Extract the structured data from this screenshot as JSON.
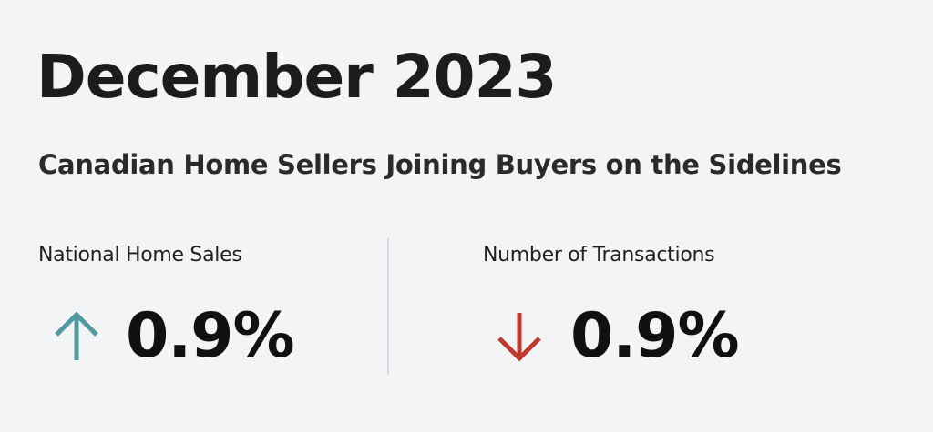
{
  "header": {
    "title": "December 2023",
    "subtitle": "Canadian Home Sellers Joining Buyers on the Sidelines"
  },
  "stats": [
    {
      "label": "National Home Sales",
      "value": "0.9%"
    },
    {
      "label": "Number of Transactions",
      "value": "0.9%"
    }
  ]
}
